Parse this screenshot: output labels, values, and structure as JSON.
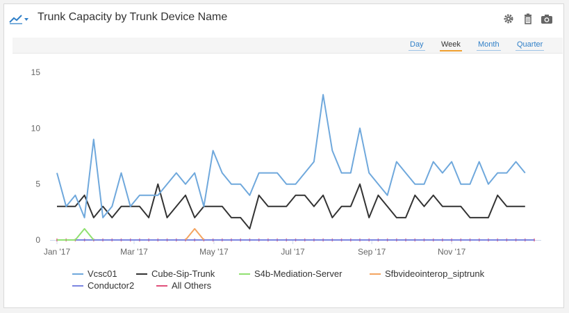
{
  "header": {
    "title": "Trunk Capacity by Trunk Device Name",
    "icons": [
      "line-chart-icon",
      "gear-icon",
      "trash-icon",
      "camera-icon"
    ]
  },
  "ranges": {
    "items": [
      "Day",
      "Week",
      "Month",
      "Quarter"
    ],
    "active": "Week"
  },
  "colors": {
    "accent": "#f0a030",
    "link": "#2f7fc8"
  },
  "chart_data": {
    "type": "line",
    "title": "",
    "xlabel": "",
    "ylabel": "",
    "ylim": [
      0,
      15
    ],
    "yticks": [
      0,
      5,
      10,
      15
    ],
    "xticks": [
      "Jan '17",
      "Mar '17",
      "May '17",
      "Jul '17",
      "Sep '17",
      "Nov '17"
    ],
    "xtick_weeks": [
      0,
      8.4,
      17.1,
      25.7,
      34.3,
      43.0
    ],
    "x_unit": "week index starting Jan 1 2017",
    "x": [
      0,
      1,
      2,
      3,
      4,
      5,
      6,
      7,
      8,
      9,
      10,
      11,
      12,
      13,
      14,
      15,
      16,
      17,
      18,
      19,
      20,
      21,
      22,
      23,
      24,
      25,
      26,
      27,
      28,
      29,
      30,
      31,
      32,
      33,
      34,
      35,
      36,
      37,
      38,
      39,
      40,
      41,
      42,
      43,
      44,
      45,
      46,
      47,
      48,
      49,
      50,
      51,
      52
    ],
    "series": [
      {
        "name": "Vcsc01",
        "color": "#6fa8dc",
        "values": [
          6,
          3,
          4,
          2,
          9,
          2,
          3,
          6,
          3,
          4,
          4,
          4,
          5,
          6,
          5,
          6,
          3,
          8,
          6,
          5,
          5,
          4,
          6,
          6,
          6,
          5,
          5,
          6,
          7,
          13,
          8,
          6,
          6,
          10,
          6,
          5,
          4,
          7,
          6,
          5,
          5,
          7,
          6,
          7,
          5,
          5,
          7,
          5,
          6,
          6,
          7,
          6,
          null
        ]
      },
      {
        "name": "Cube-Sip-Trunk",
        "color": "#333333",
        "values": [
          3,
          3,
          3,
          4,
          2,
          3,
          2,
          3,
          3,
          3,
          2,
          5,
          2,
          3,
          4,
          2,
          3,
          3,
          3,
          2,
          2,
          1,
          4,
          3,
          3,
          3,
          4,
          4,
          3,
          4,
          2,
          3,
          3,
          5,
          2,
          4,
          3,
          2,
          2,
          4,
          3,
          4,
          3,
          3,
          3,
          2,
          2,
          2,
          4,
          3,
          3,
          3,
          null
        ]
      },
      {
        "name": "S4b-Mediation-Server",
        "color": "#90e070",
        "values": [
          0,
          0,
          0,
          1,
          0,
          null,
          null,
          null,
          null,
          null,
          null,
          null,
          null,
          null,
          null,
          null,
          null,
          null,
          null,
          null,
          null,
          null,
          null,
          null,
          null,
          null,
          null,
          null,
          null,
          null,
          null,
          null,
          null,
          null,
          null,
          null,
          null,
          null,
          null,
          null,
          null,
          null,
          null,
          null,
          null,
          null,
          null,
          null,
          null,
          null,
          null,
          null,
          null
        ]
      },
      {
        "name": "Sfbvideointerop_siptrunk",
        "color": "#f4a460",
        "values": [
          null,
          null,
          null,
          null,
          null,
          null,
          null,
          null,
          null,
          null,
          null,
          null,
          null,
          null,
          0,
          1,
          0,
          null,
          null,
          null,
          null,
          null,
          null,
          null,
          null,
          null,
          null,
          null,
          null,
          null,
          null,
          null,
          null,
          null,
          null,
          null,
          null,
          null,
          null,
          null,
          null,
          null,
          null,
          null,
          null,
          null,
          null,
          null,
          null,
          null,
          null,
          null,
          null
        ]
      },
      {
        "name": "Conductor2",
        "color": "#7b85e0",
        "values": [
          0,
          0,
          0,
          0,
          0,
          0,
          0,
          0,
          0,
          0,
          0,
          0,
          0,
          0,
          0,
          0,
          0,
          0,
          0,
          0,
          0,
          0,
          0,
          0,
          0,
          0,
          0,
          0,
          0,
          0,
          0,
          0,
          0,
          0,
          0,
          0,
          0,
          0,
          0,
          0,
          0,
          0,
          0,
          0,
          0,
          0,
          0,
          0,
          0,
          0,
          0,
          0,
          0
        ]
      },
      {
        "name": "All Others",
        "color": "#e0507a",
        "values": [
          0,
          0,
          0,
          0,
          0,
          0,
          0,
          0,
          0,
          0,
          0,
          0,
          0,
          0,
          0,
          0,
          0,
          0,
          0,
          0,
          0,
          0,
          0,
          0,
          0,
          0,
          0,
          0,
          0,
          0,
          0,
          0,
          0,
          0,
          0,
          0,
          0,
          0,
          0,
          0,
          0,
          0,
          0,
          0,
          0,
          0,
          0,
          0,
          0,
          0,
          0,
          0,
          0
        ]
      }
    ],
    "legend_position": "bottom",
    "grid": false
  }
}
